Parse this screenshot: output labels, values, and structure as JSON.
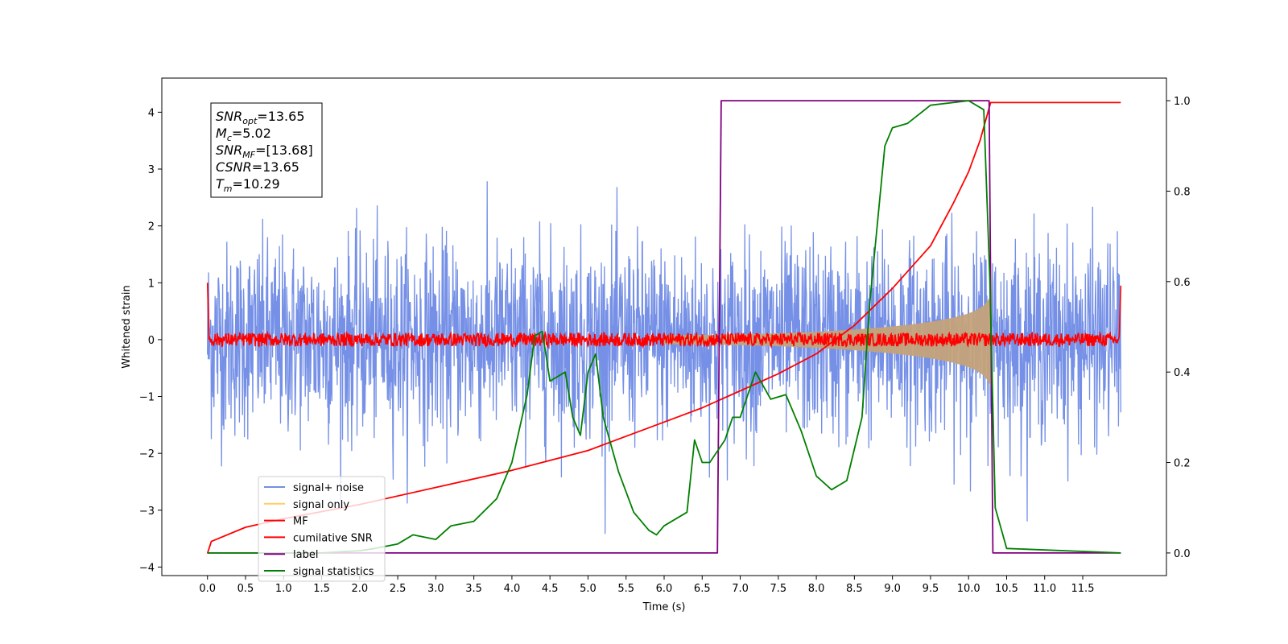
{
  "chart_data": {
    "type": "line",
    "title": "",
    "xlabel": "Time (s)",
    "ylabel": "Whitened strain",
    "xlim": [
      -0.6,
      12.6
    ],
    "ylim": [
      -4.15,
      4.6
    ],
    "y2lim": [
      -0.05,
      1.05
    ],
    "grid": false,
    "x_ticks": [
      "0.0",
      "0.5",
      "1.0",
      "1.5",
      "2.0",
      "2.5",
      "3.0",
      "3.5",
      "4.0",
      "4.5",
      "5.0",
      "5.5",
      "6.0",
      "6.5",
      "7.0",
      "7.5",
      "8.0",
      "8.5",
      "9.0",
      "9.5",
      "10.0",
      "10.5",
      "11.0",
      "11.5"
    ],
    "y_ticks": [
      "−4",
      "−3",
      "−2",
      "−1",
      "0",
      "1",
      "2",
      "3",
      "4"
    ],
    "y2_ticks": [
      "0.0",
      "0.2",
      "0.4",
      "0.6",
      "0.8",
      "1.0"
    ],
    "info_box": [
      {
        "base": "SNR",
        "sub": "opt",
        "value": "=13.65"
      },
      {
        "base": "M",
        "sub": "c",
        "value": "=5.02"
      },
      {
        "base": "SNR",
        "sub": "MF",
        "value": "=[13.68]"
      },
      {
        "base": "CSNR",
        "sub": "",
        "value": "=13.65"
      },
      {
        "base": "T",
        "sub": "m",
        "value": "=10.29"
      }
    ],
    "legend": {
      "placement": "lower-left",
      "entries": [
        {
          "label": "signal+ noise",
          "color": "#7590e6"
        },
        {
          "label": "signal only",
          "color": "#ffcc66"
        },
        {
          "label": "MF",
          "color": "#ff0000"
        },
        {
          "label": "cumilative SNR",
          "color": "#ff0000"
        },
        {
          "label": "label",
          "color": "#800080"
        },
        {
          "label": "signal statistics",
          "color": "#008000"
        }
      ]
    },
    "series": [
      {
        "name": "signal+ noise",
        "axis": "left",
        "color": "#7590e6",
        "noise_sigma": 0.85,
        "t_range": [
          0,
          12
        ]
      },
      {
        "name": "signal only",
        "axis": "left",
        "color": "#c4a27a",
        "t_range": [
          6.0,
          10.29
        ],
        "envelope_max": 0.95
      },
      {
        "name": "MF",
        "axis": "left",
        "color": "#ff0000",
        "t_range": [
          0,
          12
        ],
        "band": 0.12
      },
      {
        "name": "cumilative SNR",
        "axis": "left",
        "color": "#ff0000",
        "points": [
          [
            0.0,
            -3.76
          ],
          [
            0.05,
            -3.55
          ],
          [
            0.5,
            -3.3
          ],
          [
            1.0,
            -3.15
          ],
          [
            2.0,
            -2.9
          ],
          [
            3.0,
            -2.6
          ],
          [
            4.0,
            -2.3
          ],
          [
            5.0,
            -1.95
          ],
          [
            6.0,
            -1.45
          ],
          [
            6.5,
            -1.2
          ],
          [
            7.0,
            -0.9
          ],
          [
            7.5,
            -0.6
          ],
          [
            8.0,
            -0.25
          ],
          [
            8.5,
            0.25
          ],
          [
            9.0,
            0.9
          ],
          [
            9.5,
            1.65
          ],
          [
            9.8,
            2.4
          ],
          [
            10.0,
            2.95
          ],
          [
            10.15,
            3.5
          ],
          [
            10.29,
            4.17
          ],
          [
            12.0,
            4.17
          ]
        ]
      },
      {
        "name": "label",
        "axis": "right",
        "color": "#800080",
        "points": [
          [
            0.0,
            0.0
          ],
          [
            6.7,
            0.0
          ],
          [
            6.75,
            1.0
          ],
          [
            10.27,
            1.0
          ],
          [
            10.32,
            0.0
          ],
          [
            12.0,
            0.0
          ]
        ]
      },
      {
        "name": "signal statistics",
        "axis": "right",
        "color": "#008000",
        "points": [
          [
            0.0,
            0.0
          ],
          [
            1.0,
            0.0
          ],
          [
            1.5,
            0.0
          ],
          [
            2.0,
            0.005
          ],
          [
            2.2,
            0.01
          ],
          [
            2.5,
            0.02
          ],
          [
            2.7,
            0.04
          ],
          [
            3.0,
            0.03
          ],
          [
            3.2,
            0.06
          ],
          [
            3.5,
            0.07
          ],
          [
            3.8,
            0.12
          ],
          [
            4.0,
            0.2
          ],
          [
            4.2,
            0.35
          ],
          [
            4.3,
            0.48
          ],
          [
            4.4,
            0.49
          ],
          [
            4.5,
            0.38
          ],
          [
            4.7,
            0.4
          ],
          [
            4.8,
            0.3
          ],
          [
            4.9,
            0.26
          ],
          [
            5.0,
            0.4
          ],
          [
            5.1,
            0.44
          ],
          [
            5.2,
            0.3
          ],
          [
            5.4,
            0.18
          ],
          [
            5.6,
            0.09
          ],
          [
            5.8,
            0.05
          ],
          [
            5.9,
            0.04
          ],
          [
            6.0,
            0.06
          ],
          [
            6.3,
            0.09
          ],
          [
            6.4,
            0.25
          ],
          [
            6.5,
            0.2
          ],
          [
            6.6,
            0.2
          ],
          [
            6.8,
            0.25
          ],
          [
            6.9,
            0.3
          ],
          [
            7.0,
            0.3
          ],
          [
            7.2,
            0.4
          ],
          [
            7.4,
            0.34
          ],
          [
            7.6,
            0.35
          ],
          [
            7.8,
            0.27
          ],
          [
            8.0,
            0.17
          ],
          [
            8.2,
            0.14
          ],
          [
            8.4,
            0.16
          ],
          [
            8.6,
            0.3
          ],
          [
            8.7,
            0.55
          ],
          [
            8.9,
            0.9
          ],
          [
            9.0,
            0.94
          ],
          [
            9.2,
            0.95
          ],
          [
            9.5,
            0.99
          ],
          [
            10.0,
            1.0
          ],
          [
            10.2,
            0.98
          ],
          [
            10.28,
            0.6
          ],
          [
            10.35,
            0.1
          ],
          [
            10.5,
            0.01
          ],
          [
            12.0,
            0.0
          ]
        ]
      }
    ]
  }
}
